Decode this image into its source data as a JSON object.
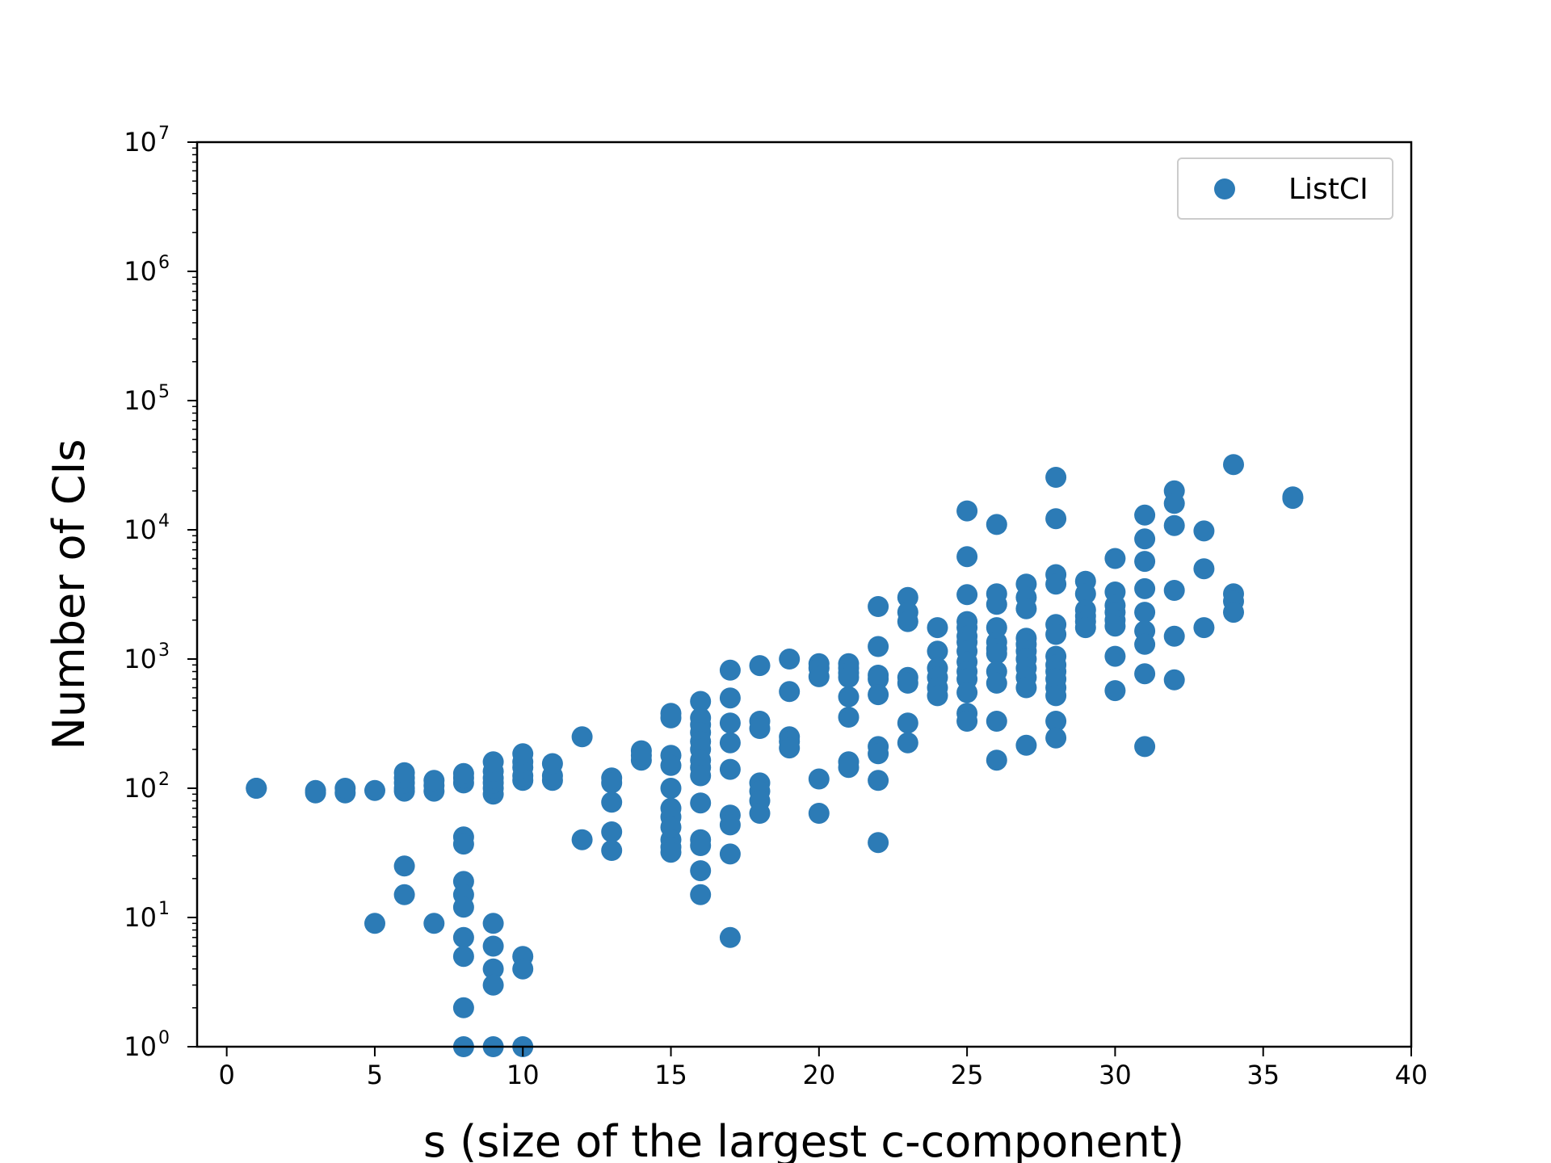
{
  "chart_data": {
    "type": "scatter",
    "title": "",
    "xlabel": "s (size of the largest c-component)",
    "ylabel": "Number of CIs",
    "xlim": [
      -1,
      40
    ],
    "ylim_log10": [
      0,
      7
    ],
    "y_scale": "log",
    "grid": false,
    "legend_position": "top-right",
    "x_ticks": [
      "0",
      "5",
      "10",
      "15",
      "20",
      "25",
      "30",
      "35",
      "40"
    ],
    "y_ticks": [
      {
        "base": "10",
        "exp": "0"
      },
      {
        "base": "10",
        "exp": "1"
      },
      {
        "base": "10",
        "exp": "2"
      },
      {
        "base": "10",
        "exp": "3"
      },
      {
        "base": "10",
        "exp": "4"
      },
      {
        "base": "10",
        "exp": "5"
      },
      {
        "base": "10",
        "exp": "6"
      },
      {
        "base": "10",
        "exp": "7"
      }
    ],
    "series": [
      {
        "name": "ListCI",
        "color": "#2c7bb6",
        "points": [
          [
            1,
            100
          ],
          [
            1,
            100
          ],
          [
            3,
            92
          ],
          [
            3,
            96
          ],
          [
            4,
            92
          ],
          [
            4,
            100
          ],
          [
            5,
            96
          ],
          [
            5,
            9
          ],
          [
            6,
            95
          ],
          [
            6,
            100
          ],
          [
            6,
            110
          ],
          [
            6,
            120
          ],
          [
            6,
            132
          ],
          [
            6,
            25
          ],
          [
            6,
            15
          ],
          [
            7,
            95
          ],
          [
            7,
            105
          ],
          [
            7,
            115
          ],
          [
            7,
            9
          ],
          [
            8,
            110
          ],
          [
            8,
            120
          ],
          [
            8,
            130
          ],
          [
            8,
            42
          ],
          [
            8,
            37
          ],
          [
            8,
            19
          ],
          [
            8,
            15
          ],
          [
            8,
            12
          ],
          [
            8,
            7
          ],
          [
            8,
            5
          ],
          [
            8,
            2
          ],
          [
            8,
            1
          ],
          [
            9,
            90
          ],
          [
            9,
            100
          ],
          [
            9,
            110
          ],
          [
            9,
            120
          ],
          [
            9,
            135
          ],
          [
            9,
            160
          ],
          [
            9,
            9
          ],
          [
            9,
            6
          ],
          [
            9,
            4
          ],
          [
            9,
            3
          ],
          [
            9,
            1
          ],
          [
            10,
            115
          ],
          [
            10,
            125
          ],
          [
            10,
            145
          ],
          [
            10,
            160
          ],
          [
            10,
            185
          ],
          [
            10,
            5
          ],
          [
            10,
            4
          ],
          [
            10,
            1
          ],
          [
            11,
            115
          ],
          [
            11,
            125
          ],
          [
            11,
            155
          ],
          [
            12,
            250
          ],
          [
            12,
            40
          ],
          [
            13,
            120
          ],
          [
            13,
            110
          ],
          [
            13,
            78
          ],
          [
            13,
            46
          ],
          [
            13,
            33
          ],
          [
            14,
            165
          ],
          [
            14,
            180
          ],
          [
            14,
            195
          ],
          [
            15,
            380
          ],
          [
            15,
            350
          ],
          [
            15,
            180
          ],
          [
            15,
            150
          ],
          [
            15,
            100
          ],
          [
            15,
            70
          ],
          [
            15,
            60
          ],
          [
            15,
            50
          ],
          [
            15,
            40
          ],
          [
            15,
            35
          ],
          [
            15,
            32
          ],
          [
            16,
            470
          ],
          [
            16,
            350
          ],
          [
            16,
            310
          ],
          [
            16,
            270
          ],
          [
            16,
            230
          ],
          [
            16,
            200
          ],
          [
            16,
            165
          ],
          [
            16,
            145
          ],
          [
            16,
            125
          ],
          [
            16,
            77
          ],
          [
            16,
            40
          ],
          [
            16,
            36
          ],
          [
            16,
            23
          ],
          [
            16,
            15
          ],
          [
            17,
            820
          ],
          [
            17,
            500
          ],
          [
            17,
            320
          ],
          [
            17,
            225
          ],
          [
            17,
            140
          ],
          [
            17,
            62
          ],
          [
            17,
            52
          ],
          [
            17,
            31
          ],
          [
            17,
            7
          ],
          [
            18,
            890
          ],
          [
            18,
            330
          ],
          [
            18,
            290
          ],
          [
            18,
            110
          ],
          [
            18,
            95
          ],
          [
            18,
            80
          ],
          [
            18,
            64
          ],
          [
            19,
            1000
          ],
          [
            19,
            560
          ],
          [
            19,
            250
          ],
          [
            19,
            230
          ],
          [
            19,
            205
          ],
          [
            20,
            920
          ],
          [
            20,
            850
          ],
          [
            20,
            730
          ],
          [
            20,
            118
          ],
          [
            20,
            64
          ],
          [
            21,
            920
          ],
          [
            21,
            850
          ],
          [
            21,
            780
          ],
          [
            21,
            720
          ],
          [
            21,
            510
          ],
          [
            21,
            355
          ],
          [
            21,
            160
          ],
          [
            21,
            145
          ],
          [
            22,
            2550
          ],
          [
            22,
            1250
          ],
          [
            22,
            750
          ],
          [
            22,
            700
          ],
          [
            22,
            530
          ],
          [
            22,
            210
          ],
          [
            22,
            185
          ],
          [
            22,
            115
          ],
          [
            22,
            38
          ],
          [
            23,
            3000
          ],
          [
            23,
            2300
          ],
          [
            23,
            1950
          ],
          [
            23,
            720
          ],
          [
            23,
            650
          ],
          [
            23,
            320
          ],
          [
            23,
            225
          ],
          [
            24,
            1750
          ],
          [
            24,
            1150
          ],
          [
            24,
            850
          ],
          [
            24,
            720
          ],
          [
            24,
            600
          ],
          [
            24,
            520
          ],
          [
            25,
            14000
          ],
          [
            25,
            6200
          ],
          [
            25,
            3150
          ],
          [
            25,
            1950
          ],
          [
            25,
            1750
          ],
          [
            25,
            1500
          ],
          [
            25,
            1350
          ],
          [
            25,
            1150
          ],
          [
            25,
            950
          ],
          [
            25,
            800
          ],
          [
            25,
            700
          ],
          [
            25,
            550
          ],
          [
            25,
            380
          ],
          [
            25,
            330
          ],
          [
            26,
            11000
          ],
          [
            26,
            3200
          ],
          [
            26,
            2650
          ],
          [
            26,
            1750
          ],
          [
            26,
            1350
          ],
          [
            26,
            1200
          ],
          [
            26,
            1100
          ],
          [
            26,
            800
          ],
          [
            26,
            650
          ],
          [
            26,
            330
          ],
          [
            26,
            165
          ],
          [
            27,
            3800
          ],
          [
            27,
            3000
          ],
          [
            27,
            2450
          ],
          [
            27,
            1450
          ],
          [
            27,
            1300
          ],
          [
            27,
            1150
          ],
          [
            27,
            1000
          ],
          [
            27,
            850
          ],
          [
            27,
            720
          ],
          [
            27,
            600
          ],
          [
            27,
            215
          ],
          [
            28,
            25500
          ],
          [
            28,
            12200
          ],
          [
            28,
            4500
          ],
          [
            28,
            3800
          ],
          [
            28,
            1850
          ],
          [
            28,
            1550
          ],
          [
            28,
            1050
          ],
          [
            28,
            900
          ],
          [
            28,
            800
          ],
          [
            28,
            700
          ],
          [
            28,
            600
          ],
          [
            28,
            520
          ],
          [
            28,
            330
          ],
          [
            28,
            245
          ],
          [
            29,
            4000
          ],
          [
            29,
            3200
          ],
          [
            29,
            2400
          ],
          [
            29,
            2150
          ],
          [
            29,
            1950
          ],
          [
            29,
            1750
          ],
          [
            30,
            6000
          ],
          [
            30,
            3300
          ],
          [
            30,
            2600
          ],
          [
            30,
            2300
          ],
          [
            30,
            2000
          ],
          [
            30,
            1800
          ],
          [
            30,
            1050
          ],
          [
            30,
            570
          ],
          [
            31,
            13000
          ],
          [
            31,
            8500
          ],
          [
            31,
            5700
          ],
          [
            31,
            3500
          ],
          [
            31,
            2300
          ],
          [
            31,
            1650
          ],
          [
            31,
            1300
          ],
          [
            31,
            770
          ],
          [
            31,
            210
          ],
          [
            32,
            20000
          ],
          [
            32,
            16000
          ],
          [
            32,
            10800
          ],
          [
            32,
            3400
          ],
          [
            32,
            1500
          ],
          [
            32,
            690
          ],
          [
            33,
            9800
          ],
          [
            33,
            5000
          ],
          [
            33,
            1750
          ],
          [
            34,
            32000
          ],
          [
            34,
            3200
          ],
          [
            34,
            2800
          ],
          [
            34,
            2300
          ],
          [
            36,
            18000
          ],
          [
            36,
            17500
          ]
        ]
      }
    ]
  }
}
